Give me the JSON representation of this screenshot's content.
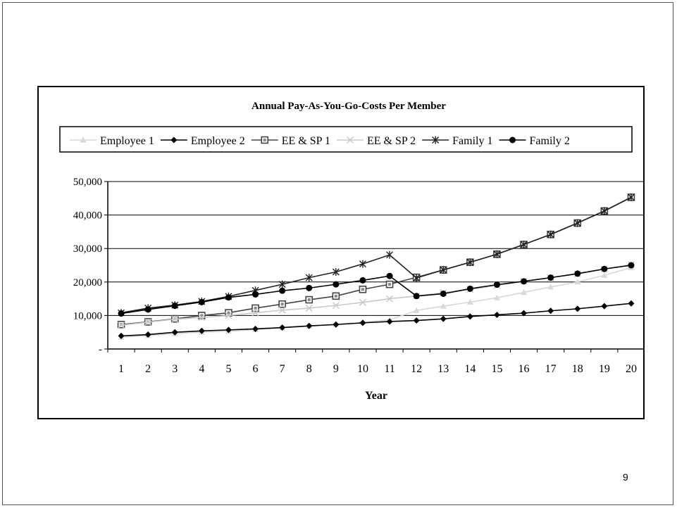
{
  "page_number": "9",
  "chart_data": {
    "type": "line",
    "title": "Annual Pay-As-You-Go-Costs Per Member",
    "xlabel": "Year",
    "ylabel": "",
    "categories": [
      "1",
      "2",
      "3",
      "4",
      "5",
      "6",
      "7",
      "8",
      "9",
      "10",
      "11",
      "12",
      "13",
      "14",
      "15",
      "16",
      "17",
      "18",
      "19",
      "20"
    ],
    "ylim": [
      0,
      50000
    ],
    "yticks": [
      0,
      10000,
      20000,
      30000,
      40000,
      50000
    ],
    "ytick_labels": [
      "-",
      "10,000",
      "20,000",
      "30,000",
      "40,000",
      "50,000"
    ],
    "grid": true,
    "legend_position": "top",
    "series": [
      {
        "name": "Employee 1",
        "color": "#d8d8d8",
        "marker": "triangle",
        "values": [
          3500,
          4000,
          4600,
          5000,
          5300,
          5800,
          6300,
          6800,
          7400,
          8000,
          8700,
          11500,
          12800,
          14000,
          15300,
          16900,
          18500,
          20000,
          22000,
          24300
        ]
      },
      {
        "name": "Employee 2",
        "color": "#000000",
        "marker": "diamond",
        "values": [
          3900,
          4300,
          5000,
          5400,
          5700,
          6000,
          6400,
          6900,
          7300,
          7800,
          8200,
          8500,
          9000,
          9700,
          10200,
          10700,
          11400,
          12000,
          12800,
          13600
        ]
      },
      {
        "name": "EE & SP 1",
        "color": "#444444",
        "marker": "square",
        "values": [
          7300,
          8100,
          9000,
          10000,
          10800,
          12200,
          13400,
          14700,
          15800,
          17800,
          19300,
          21400,
          23600,
          25900,
          28300,
          31200,
          34200,
          37600,
          41200,
          45300
        ]
      },
      {
        "name": "EE & SP 2",
        "color": "#c8c8c8",
        "marker": "x",
        "values": [
          7100,
          8000,
          8900,
          9400,
          10000,
          10800,
          11600,
          12200,
          13000,
          13900,
          15000,
          15800,
          16800,
          17800,
          19000,
          20200,
          21300,
          22400,
          23800,
          25200
        ]
      },
      {
        "name": "Family 1",
        "color": "#222222",
        "marker": "star",
        "values": [
          10800,
          12200,
          13100,
          14200,
          15700,
          17500,
          19300,
          21300,
          23000,
          25400,
          28100,
          21200,
          23600,
          25900,
          28300,
          31200,
          34200,
          37600,
          41200,
          45300
        ]
      },
      {
        "name": "Family 2",
        "color": "#000000",
        "marker": "circle",
        "values": [
          10600,
          11800,
          12900,
          14000,
          15400,
          16300,
          17400,
          18200,
          19300,
          20500,
          21800,
          15800,
          16500,
          18000,
          19200,
          20200,
          21300,
          22500,
          23900,
          25000
        ]
      }
    ]
  }
}
